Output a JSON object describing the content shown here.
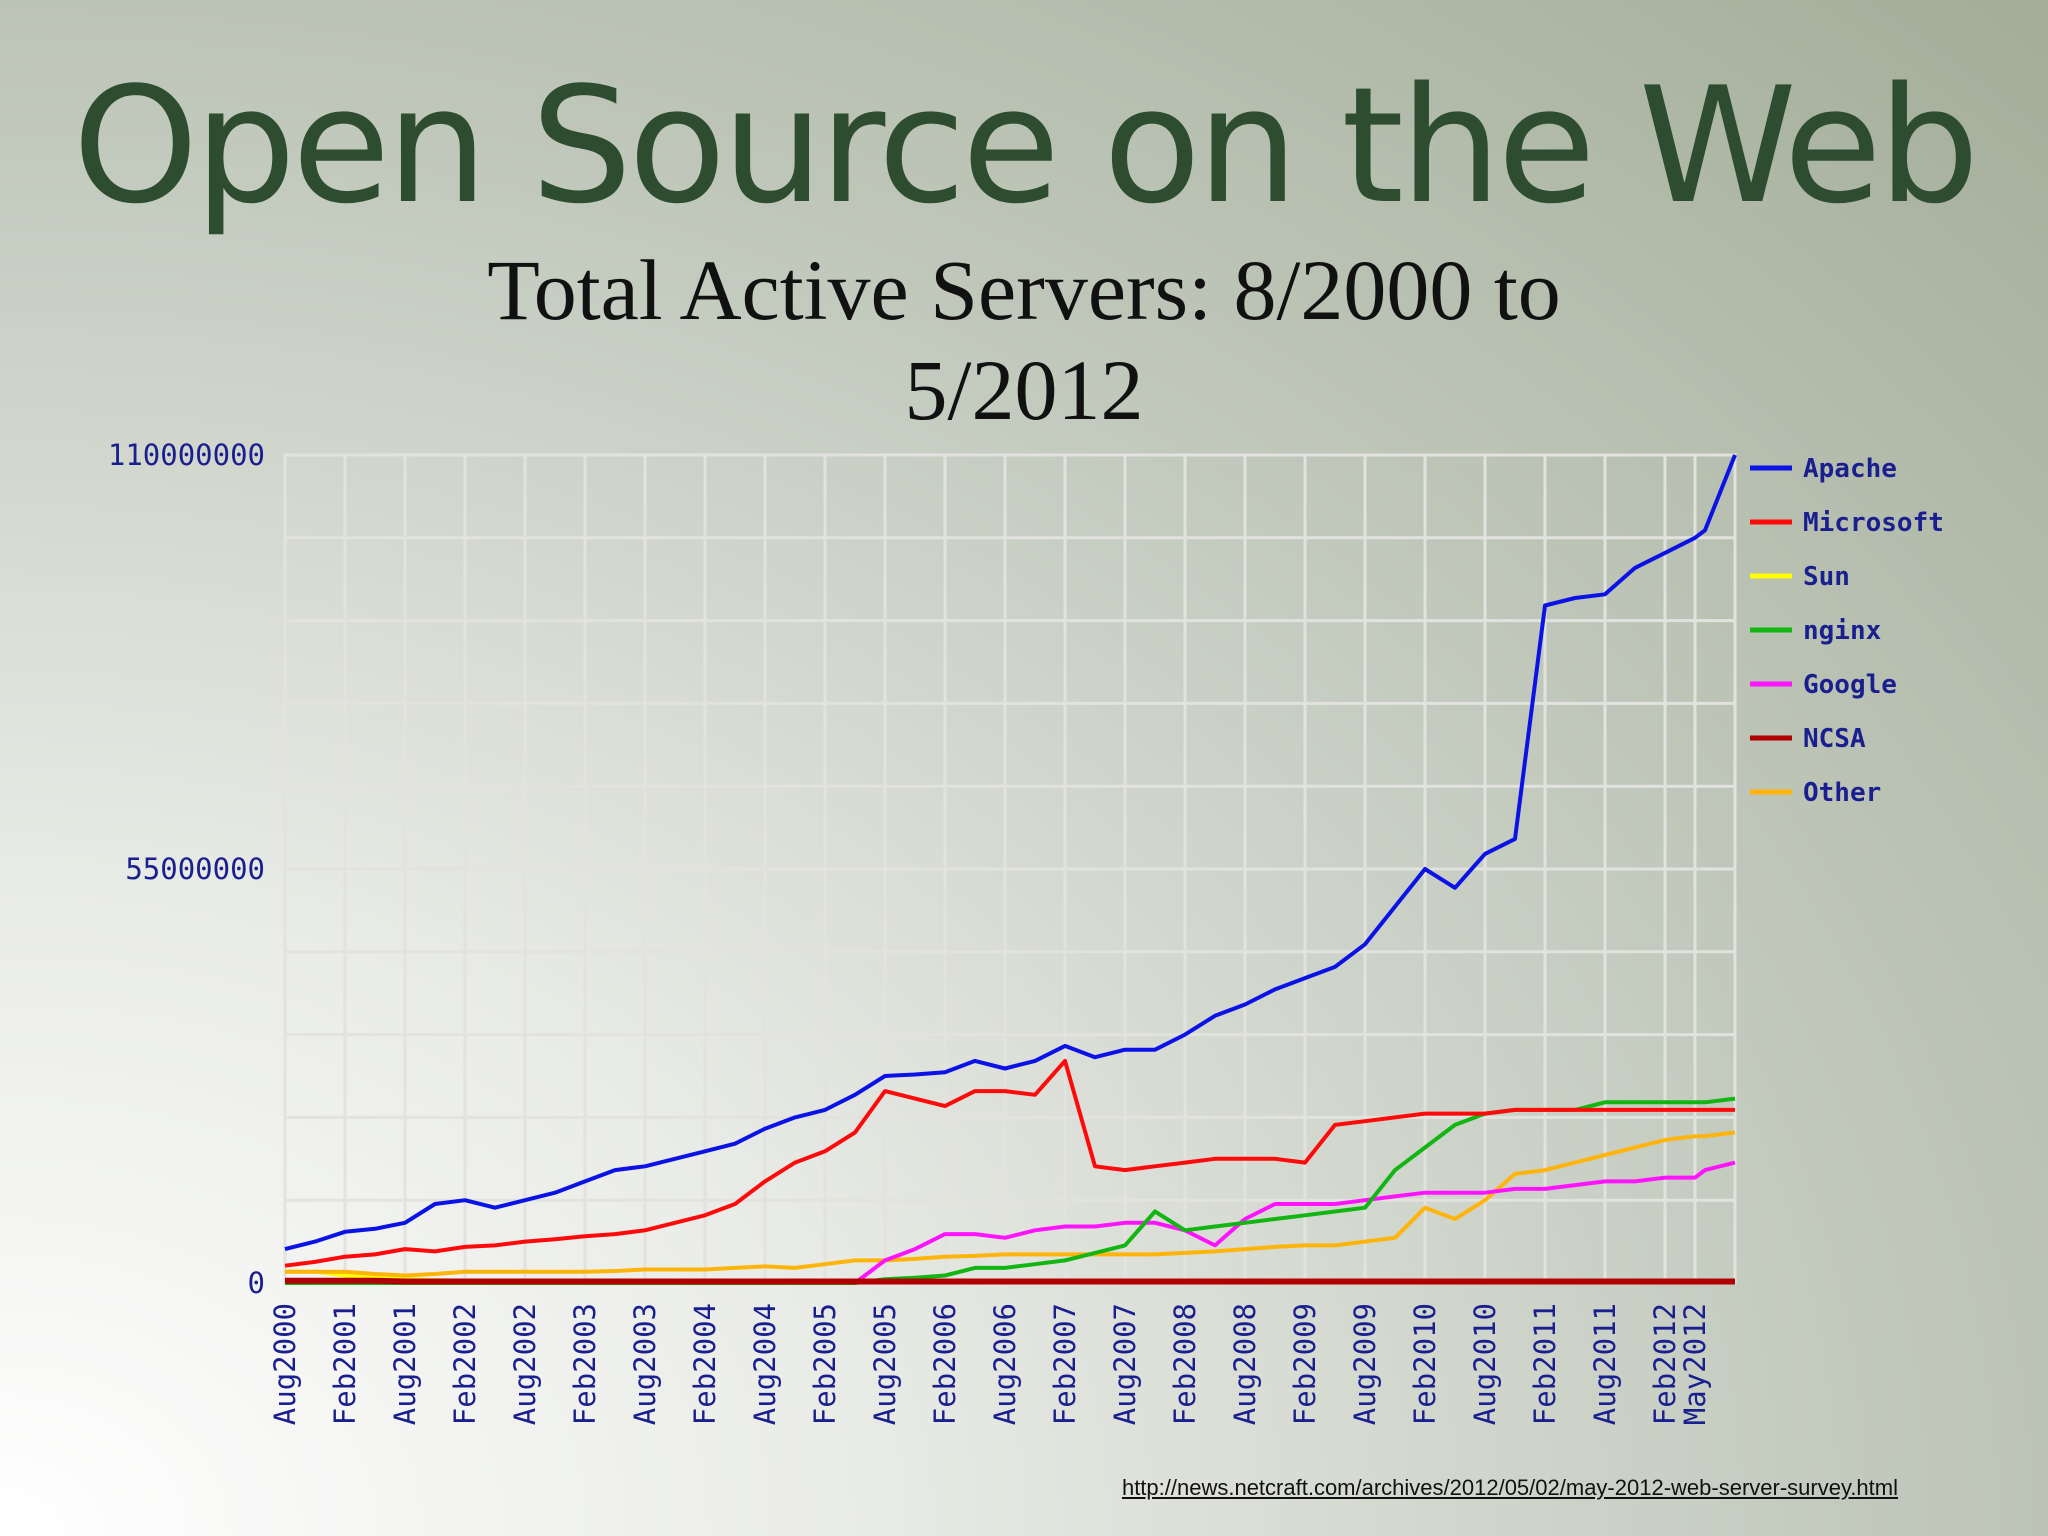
{
  "slide": {
    "title": "Open Source on the Web",
    "source_link": "http://news.netcraft.com/archives/2012/05/02/may-2012-web-server-survey.html"
  },
  "chart_data": {
    "type": "line",
    "title": "Total Active Servers: 8/2000 to 5/2012",
    "xlabel": "",
    "ylabel": "",
    "x_ticks": [
      "Aug2000",
      "Feb2001",
      "Aug2001",
      "Feb2002",
      "Aug2002",
      "Feb2003",
      "Aug2003",
      "Feb2004",
      "Aug2004",
      "Feb2005",
      "Aug2005",
      "Feb2006",
      "Aug2006",
      "Feb2007",
      "Aug2007",
      "Feb2008",
      "Aug2008",
      "Feb2009",
      "Aug2009",
      "Feb2010",
      "Aug2010",
      "Feb2011",
      "Aug2011",
      "Feb2012",
      "May2012"
    ],
    "y_ticks": [
      "0",
      "55000000",
      "110000000"
    ],
    "ylim": [
      0,
      110000000
    ],
    "grid": true,
    "legend_position": "right",
    "x_months": [
      0,
      3,
      6,
      9,
      12,
      15,
      18,
      21,
      24,
      27,
      30,
      33,
      36,
      39,
      42,
      45,
      48,
      51,
      54,
      57,
      60,
      63,
      66,
      69,
      72,
      75,
      78,
      81,
      84,
      87,
      90,
      93,
      96,
      99,
      102,
      105,
      108,
      111,
      114,
      117,
      120,
      123,
      126,
      129,
      132,
      135,
      138,
      141,
      141.5,
      142,
      145
    ],
    "series": [
      {
        "name": "Apache",
        "color": "#0b12e6",
        "values": [
          4.5,
          5.5,
          6.8,
          7.2,
          8.0,
          10.5,
          11.0,
          10.0,
          11.0,
          12.0,
          13.5,
          15.0,
          15.5,
          16.5,
          17.5,
          18.5,
          20.5,
          22.0,
          23.0,
          25.0,
          27.5,
          27.7,
          28.0,
          29.5,
          28.5,
          29.5,
          31.5,
          30.0,
          31.0,
          31.0,
          33.0,
          35.5,
          37.0,
          39.0,
          40.5,
          42.0,
          45.0,
          50.0,
          55.0,
          52.5,
          57.0,
          59.0,
          90.0,
          91.0,
          91.5,
          95.0,
          97.0,
          99.0,
          99.5,
          100.0,
          110.0
        ]
      },
      {
        "name": "Microsoft",
        "color": "#ff0a0a",
        "values": [
          2.3,
          2.8,
          3.5,
          3.8,
          4.5,
          4.2,
          4.8,
          5.0,
          5.5,
          5.8,
          6.2,
          6.5,
          7.0,
          8.0,
          9.0,
          10.5,
          13.5,
          16.0,
          17.5,
          20.0,
          25.5,
          24.5,
          23.5,
          25.5,
          25.5,
          25.0,
          29.5,
          15.5,
          15.0,
          15.5,
          16.0,
          16.5,
          16.5,
          16.5,
          16.0,
          21.0,
          21.5,
          22.0,
          22.5,
          22.5,
          22.5,
          23.0,
          23.0,
          23.0,
          23.0,
          23.0,
          23.0,
          23.0,
          23.0,
          23.0,
          23.0
        ]
      },
      {
        "name": "Sun",
        "color": "#ffff00",
        "values": [
          1.5,
          1.5,
          1.0,
          0.8,
          0.5,
          0.4,
          0.3,
          0.2,
          0.2,
          0.1,
          0.1,
          0.1,
          0.1,
          0.1,
          0.1,
          0.1,
          0.1,
          0.1,
          0.1,
          0.1,
          0.1,
          0.1,
          0.1,
          0.1,
          0.1,
          0.1,
          0.1,
          0.1,
          0.1,
          0.1,
          0.1,
          0.1,
          0.1,
          0.1,
          0.1,
          0.1,
          0.1,
          0.1,
          0.1,
          0.1,
          0.1,
          0.1,
          0.1,
          0.1,
          0.1,
          0.1,
          0.1,
          0.1,
          0.1,
          0.1,
          0.1
        ]
      },
      {
        "name": "nginx",
        "color": "#12b512",
        "values": [
          0,
          0,
          0,
          0,
          0,
          0,
          0,
          0,
          0,
          0,
          0,
          0,
          0,
          0,
          0,
          0,
          0,
          0,
          0,
          0,
          0.5,
          0.7,
          1.0,
          2.0,
          2.0,
          2.5,
          3.0,
          4.0,
          5.0,
          9.5,
          7.0,
          7.5,
          8.0,
          8.5,
          9.0,
          9.5,
          10.0,
          15.0,
          18.0,
          21.0,
          22.5,
          23.0,
          23.0,
          23.0,
          24.0,
          24.0,
          24.0,
          24.0,
          24.0,
          24.0,
          24.5
        ]
      },
      {
        "name": "Google",
        "color": "#ff14ff",
        "values": [
          0,
          0,
          0,
          0,
          0,
          0,
          0,
          0,
          0,
          0,
          0,
          0,
          0,
          0,
          0,
          0,
          0,
          0,
          0,
          0,
          3.0,
          4.5,
          6.5,
          6.5,
          6.0,
          7.0,
          7.5,
          7.5,
          8.0,
          8.0,
          7.0,
          5.0,
          8.5,
          10.5,
          10.5,
          10.5,
          11.0,
          11.5,
          12.0,
          12.0,
          12.0,
          12.5,
          12.5,
          13.0,
          13.5,
          13.5,
          14.0,
          14.0,
          14.5,
          15.0,
          16.0
        ]
      },
      {
        "name": "NCSA",
        "color": "#b00000",
        "values": [
          0.3,
          0.3,
          0.3,
          0.3,
          0.2,
          0.2,
          0.2,
          0.2,
          0.2,
          0.2,
          0.2,
          0.2,
          0.2,
          0.2,
          0.2,
          0.2,
          0.2,
          0.2,
          0.2,
          0.2,
          0.2,
          0.2,
          0.2,
          0.2,
          0.2,
          0.2,
          0.2,
          0.2,
          0.2,
          0.2,
          0.2,
          0.2,
          0.2,
          0.2,
          0.2,
          0.2,
          0.2,
          0.2,
          0.2,
          0.2,
          0.2,
          0.2,
          0.2,
          0.2,
          0.2,
          0.2,
          0.2,
          0.2,
          0.2,
          0.2,
          0.2
        ]
      },
      {
        "name": "Other",
        "color": "#ffb40a",
        "values": [
          1.5,
          1.5,
          1.5,
          1.2,
          1.0,
          1.2,
          1.5,
          1.5,
          1.5,
          1.5,
          1.5,
          1.6,
          1.8,
          1.8,
          1.8,
          2.0,
          2.2,
          2.0,
          2.5,
          3.0,
          3.0,
          3.2,
          3.5,
          3.6,
          3.8,
          3.8,
          3.8,
          3.8,
          3.8,
          3.8,
          4.0,
          4.2,
          4.5,
          4.8,
          5.0,
          5.0,
          5.5,
          6.0,
          10.0,
          8.5,
          11.0,
          14.5,
          15.0,
          16.0,
          17.0,
          18.0,
          19.0,
          19.5,
          19.5,
          19.5,
          20.0
        ]
      }
    ]
  }
}
